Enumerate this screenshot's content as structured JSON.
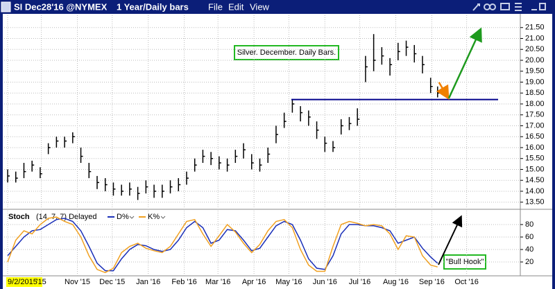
{
  "header": {
    "symbol": "SI Dec28'16 @NYMEX",
    "period": "1 Year/Daily bars",
    "menu": [
      "File",
      "Edit",
      "View"
    ]
  },
  "chart_data": [
    {
      "type": "ohlc",
      "x": [
        0,
        7,
        14,
        21,
        28,
        35,
        42,
        49,
        56,
        63,
        70,
        77,
        84,
        91,
        98,
        105,
        112,
        119,
        126,
        133,
        140,
        147,
        154,
        161,
        168,
        175,
        182,
        189,
        196,
        203,
        210,
        217,
        224,
        231,
        238,
        245,
        252,
        259,
        266,
        273,
        280,
        287,
        294,
        301,
        308,
        315,
        322,
        329,
        336,
        343,
        350,
        357,
        364,
        370
      ],
      "high": [
        15.0,
        14.9,
        15.3,
        15.4,
        15.1,
        16.2,
        16.5,
        16.5,
        16.7,
        16.0,
        15.3,
        14.7,
        14.6,
        14.4,
        14.3,
        14.4,
        14.2,
        14.5,
        14.3,
        14.3,
        14.5,
        14.6,
        14.9,
        15.5,
        15.9,
        15.8,
        15.6,
        15.5,
        15.9,
        16.2,
        15.7,
        15.5,
        16.0,
        17.0,
        17.6,
        18.2,
        17.9,
        17.7,
        17.2,
        16.5,
        16.3,
        17.3,
        17.4,
        17.8,
        20.2,
        21.2,
        20.6,
        20.1,
        20.8,
        20.9,
        20.7,
        20.2,
        19.2,
        18.8
      ],
      "low": [
        14.4,
        14.4,
        14.6,
        14.9,
        14.6,
        15.7,
        16.0,
        16.0,
        16.2,
        15.3,
        14.6,
        14.1,
        14.0,
        13.8,
        13.8,
        13.8,
        13.6,
        13.9,
        13.7,
        13.7,
        13.9,
        14.0,
        14.3,
        14.9,
        15.3,
        15.2,
        15.0,
        14.9,
        15.3,
        15.5,
        15.0,
        14.9,
        15.3,
        16.2,
        16.9,
        17.6,
        17.2,
        17.0,
        16.4,
        15.8,
        15.8,
        16.6,
        16.8,
        17.0,
        19.0,
        19.5,
        19.8,
        19.3,
        20.0,
        20.2,
        19.9,
        19.4,
        18.5,
        18.3
      ],
      "close": [
        14.7,
        14.6,
        14.9,
        15.2,
        14.8,
        16.0,
        16.3,
        16.3,
        16.5,
        15.6,
        14.9,
        14.4,
        14.3,
        14.1,
        14.0,
        14.1,
        13.9,
        14.2,
        14.0,
        14.0,
        14.2,
        14.3,
        14.6,
        15.2,
        15.6,
        15.5,
        15.3,
        15.2,
        15.6,
        15.9,
        15.3,
        15.2,
        15.7,
        16.6,
        17.2,
        18.0,
        17.6,
        17.4,
        16.8,
        16.2,
        16.0,
        17.0,
        17.1,
        17.3,
        19.7,
        20.0,
        20.2,
        19.8,
        20.4,
        20.6,
        20.3,
        19.8,
        18.8,
        18.5
      ],
      "color": "#000000",
      "xlim": [
        -3,
        440
      ],
      "ylim": [
        13.3,
        22.0
      ],
      "yticks": [
        {
          "value": 13.5,
          "label": "13.50"
        },
        {
          "value": 14,
          "label": "14.00"
        },
        {
          "value": 14.5,
          "label": "14.50"
        },
        {
          "value": 15,
          "label": "15.00"
        },
        {
          "value": 15.5,
          "label": "15.50"
        },
        {
          "value": 16,
          "label": "16.00"
        },
        {
          "value": 16.5,
          "label": "16.50"
        },
        {
          "value": 17,
          "label": "17.00"
        },
        {
          "value": 17.5,
          "label": "17.50"
        },
        {
          "value": 18,
          "label": "18.00"
        },
        {
          "value": 18.5,
          "label": "18.50"
        },
        {
          "value": 19,
          "label": "19.00"
        },
        {
          "value": 19.5,
          "label": "19.50"
        },
        {
          "value": 20,
          "label": "20.00"
        },
        {
          "value": 20.5,
          "label": "20.50"
        },
        {
          "value": 21,
          "label": "21.00"
        },
        {
          "value": 21.5,
          "label": "21.50"
        }
      ],
      "grid": true,
      "hline": {
        "value": 18.2,
        "color": "#00008b"
      },
      "annotations": [
        "Silver. December. Daily Bars."
      ]
    },
    {
      "type": "line",
      "title": "Stoch",
      "subtitle": "(14, 7, 7) Delayed",
      "x": [
        0,
        7,
        14,
        21,
        28,
        35,
        42,
        49,
        56,
        63,
        70,
        77,
        84,
        91,
        98,
        105,
        112,
        119,
        126,
        133,
        140,
        147,
        154,
        161,
        168,
        175,
        182,
        189,
        196,
        203,
        210,
        217,
        224,
        231,
        238,
        245,
        252,
        259,
        266,
        273,
        280,
        287,
        294,
        301,
        308,
        315,
        322,
        329,
        336,
        343,
        350,
        357,
        364,
        370
      ],
      "series": [
        {
          "name": "D%",
          "color": "#1a2fb8",
          "values": [
            30,
            45,
            60,
            70,
            72,
            80,
            88,
            90,
            85,
            70,
            45,
            18,
            6,
            6,
            25,
            40,
            48,
            46,
            40,
            37,
            40,
            55,
            75,
            85,
            75,
            50,
            55,
            72,
            70,
            55,
            38,
            42,
            60,
            78,
            85,
            80,
            55,
            25,
            10,
            8,
            30,
            65,
            80,
            80,
            78,
            78,
            75,
            70,
            50,
            55,
            60,
            42,
            28,
            18
          ]
        },
        {
          "name": "K%",
          "color": "#f0a020",
          "values": [
            20,
            55,
            70,
            65,
            80,
            90,
            92,
            85,
            80,
            60,
            30,
            8,
            3,
            10,
            35,
            45,
            50,
            42,
            38,
            35,
            45,
            65,
            85,
            88,
            65,
            45,
            62,
            80,
            68,
            50,
            35,
            48,
            70,
            85,
            88,
            75,
            40,
            15,
            5,
            5,
            45,
            80,
            85,
            82,
            78,
            80,
            78,
            65,
            40,
            62,
            60,
            30,
            15,
            12
          ]
        }
      ],
      "xlim": [
        -3,
        440
      ],
      "ylim": [
        0,
        100
      ],
      "yticks": [
        20,
        40,
        60,
        80
      ],
      "xticks": [
        {
          "value": 0,
          "label": "9/2/2015"
        },
        {
          "value": 29,
          "label": "'15"
        },
        {
          "value": 60,
          "label": "Nov '15"
        },
        {
          "value": 90,
          "label": "Dec '15"
        },
        {
          "value": 121,
          "label": "Jan '16"
        },
        {
          "value": 152,
          "label": "Feb '16"
        },
        {
          "value": 181,
          "label": "Mar '16"
        },
        {
          "value": 212,
          "label": "Apr '16"
        },
        {
          "value": 242,
          "label": "May '16"
        },
        {
          "value": 273,
          "label": "Jun '16"
        },
        {
          "value": 303,
          "label": "Jul '16"
        },
        {
          "value": 334,
          "label": "Aug '16"
        },
        {
          "value": 365,
          "label": "Sep '16"
        },
        {
          "value": 395,
          "label": "Oct '16"
        }
      ],
      "grid": true,
      "annotations": [
        "\"Bull Hook\""
      ]
    }
  ]
}
